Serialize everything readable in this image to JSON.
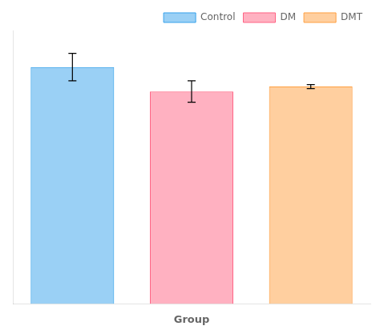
{
  "chart_data": {
    "type": "bar",
    "categories": [
      "Control",
      "DM",
      "DMT"
    ],
    "values": [
      4.85,
      4.35,
      4.45
    ],
    "errors": [
      0.28,
      0.22,
      0.04
    ],
    "xlabel": "Group",
    "ylim": [
      0,
      5.6
    ],
    "yticks": [],
    "tick_labels": false,
    "grid": false,
    "legend": "upper right"
  }
}
